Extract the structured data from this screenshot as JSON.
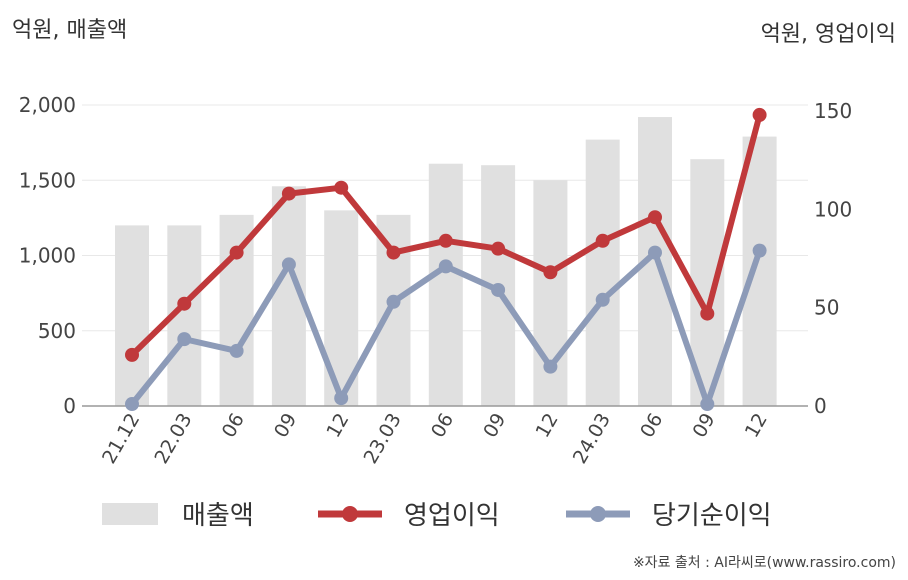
{
  "units": {
    "left": "억원, 매출액",
    "right": "억원, 영업이익"
  },
  "source": "※자료 출처 : AI라씨로(www.rassiro.com)",
  "chart_data": {
    "type": "bar",
    "categories": [
      "21.12",
      "22.03",
      "06",
      "09",
      "12",
      "23.03",
      "06",
      "09",
      "12",
      "24.03",
      "06",
      "09",
      "12"
    ],
    "series": [
      {
        "name": "매출액",
        "kind": "bar",
        "axis": "left",
        "color": "#e0e0e0",
        "values": [
          1200,
          1200,
          1270,
          1460,
          1300,
          1270,
          1610,
          1600,
          1500,
          1770,
          1920,
          1640,
          1790
        ]
      },
      {
        "name": "영업이익",
        "kind": "line",
        "axis": "right",
        "color": "#c0393b",
        "values": [
          26,
          52,
          78,
          108,
          111,
          78,
          84,
          80,
          68,
          84,
          96,
          47,
          148
        ]
      },
      {
        "name": "당기순이익",
        "kind": "line",
        "axis": "right",
        "color": "#8d9bb8",
        "values": [
          1,
          34,
          28,
          72,
          4,
          53,
          71,
          59,
          20,
          54,
          78,
          1,
          79
        ]
      }
    ],
    "y_left": {
      "min": 0,
      "max": 2000,
      "ticks": [
        "0",
        "500",
        "1,000",
        "1,500",
        "2,000"
      ]
    },
    "y_right": {
      "min": 0,
      "max": 150,
      "ticks": [
        "0",
        "50",
        "100",
        "150"
      ]
    },
    "grid": true,
    "legend": "bottom"
  }
}
